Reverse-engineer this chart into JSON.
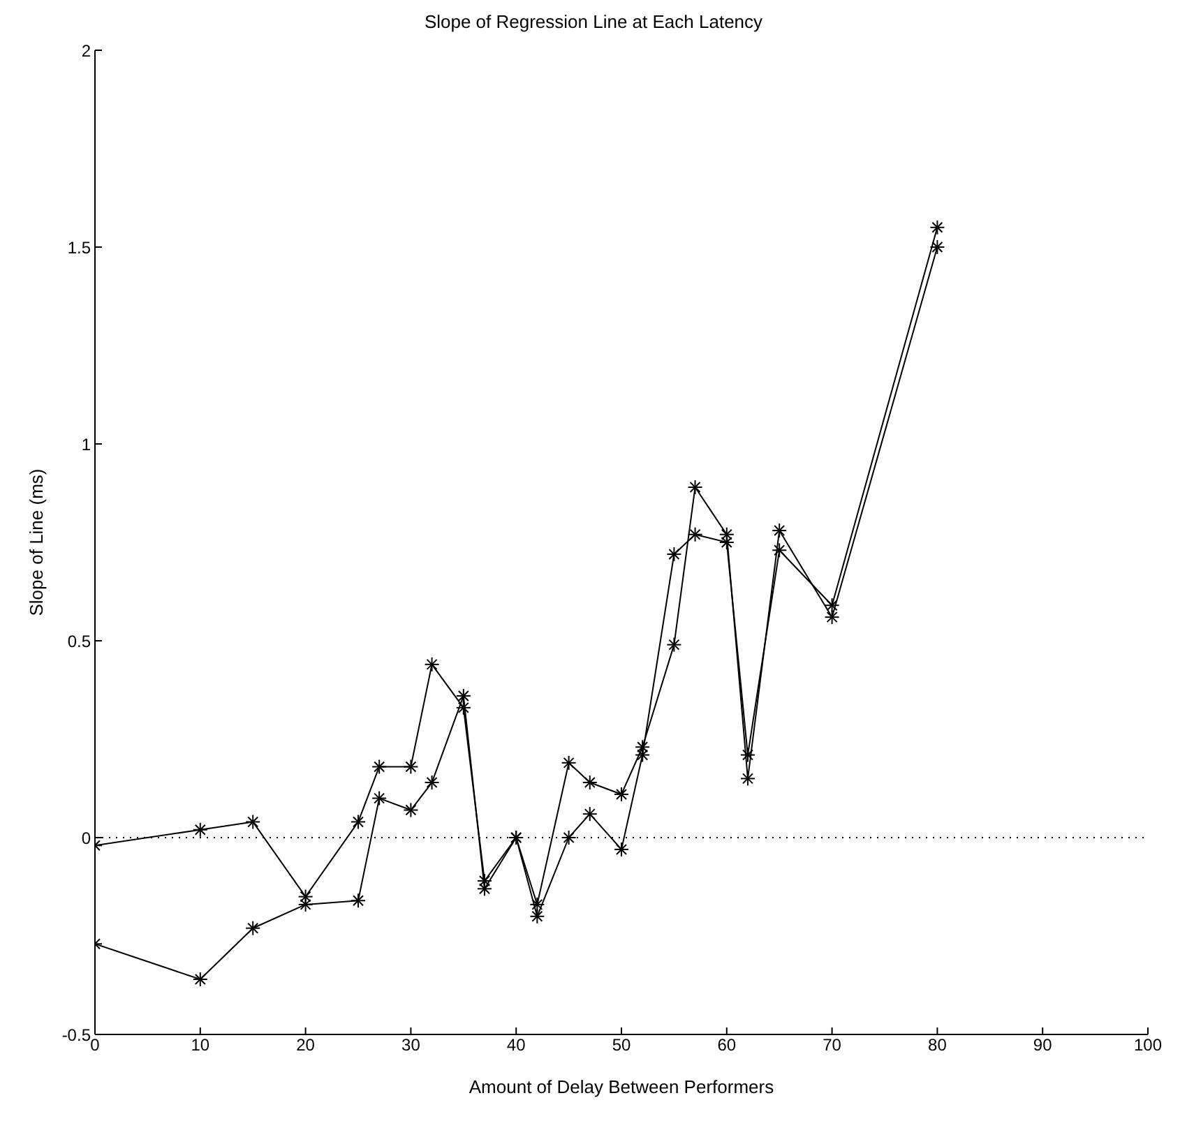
{
  "chart_data": {
    "type": "line",
    "title": "Slope of Regression Line at Each Latency",
    "xlabel": "Amount of Delay Between Performers",
    "ylabel": "Slope of Line (ms)",
    "x": [
      0,
      10,
      15,
      20,
      25,
      27,
      30,
      32,
      35,
      37,
      40,
      42,
      45,
      47,
      50,
      52,
      55,
      57,
      60,
      62,
      65,
      70,
      80
    ],
    "series": [
      {
        "color": "#000000",
        "values": [
          -0.02,
          0.02,
          0.04,
          -0.15,
          0.04,
          0.18,
          0.18,
          0.44,
          0.33,
          -0.11,
          0.0,
          -0.17,
          0.19,
          0.14,
          0.11,
          0.23,
          0.49,
          0.89,
          0.77,
          0.15,
          0.78,
          0.56,
          1.5
        ]
      },
      {
        "color": "#000000",
        "values": [
          -0.27,
          -0.36,
          -0.23,
          -0.17,
          -0.16,
          0.1,
          0.07,
          0.14,
          0.36,
          -0.13,
          0.0,
          -0.2,
          0.0,
          0.06,
          -0.03,
          0.21,
          0.72,
          0.77,
          0.75,
          0.21,
          0.73,
          0.59,
          1.55
        ]
      }
    ],
    "xlim": [
      0,
      100
    ],
    "xticks": [
      0,
      10,
      20,
      30,
      40,
      50,
      60,
      70,
      80,
      90,
      100
    ],
    "ylim": [
      -0.5,
      2
    ],
    "yticks": [
      -0.5,
      0,
      0.5,
      1,
      1.5,
      2
    ],
    "ref_lines": [
      {
        "axis": "y",
        "value": 0,
        "line_style": "dotted",
        "color": "#000000"
      }
    ],
    "grid": false,
    "legend": false,
    "marker": "cross",
    "line_style": "solid"
  }
}
